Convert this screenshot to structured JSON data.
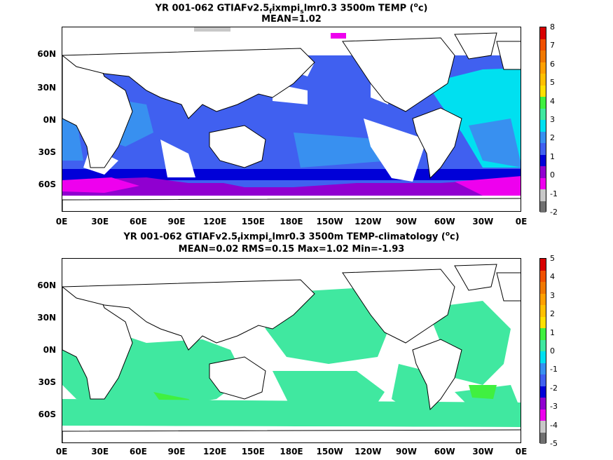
{
  "panel1": {
    "title_pre": "YR 001-062 GTIAFv2.5",
    "title_sub1": "f",
    "title_mid": "ixmpi",
    "title_sub2": "s",
    "title_post": "lmr0.3 3500m TEMP (",
    "title_sup": "o",
    "title_end": "c)",
    "stats": "MEAN=1.02",
    "colorbar_labels": [
      "8",
      "7",
      "6",
      "5",
      "4",
      "3",
      "2",
      "1",
      "0",
      "-1",
      "-2"
    ]
  },
  "panel2": {
    "title_pre": "YR 001-062 GTIAFv2.5",
    "title_sub1": "f",
    "title_mid": "ixmpi",
    "title_sub2": "s",
    "title_post": "lmr0.3 3500m TEMP-climatology (",
    "title_sup": "o",
    "title_end": "c)",
    "stats": "MEAN=0.02   RMS=0.15   Max=1.02   Min=-1.93",
    "colorbar_labels": [
      "5",
      "4",
      "3",
      "2",
      "1",
      "0",
      "-1",
      "-2",
      "-3",
      "-4",
      "-5"
    ]
  },
  "lat_labels": [
    "60N",
    "30N",
    "0N",
    "30S",
    "60S"
  ],
  "lon_labels": [
    "0E",
    "30E",
    "60E",
    "90E",
    "120E",
    "150E",
    "180E",
    "150W",
    "120W",
    "90W",
    "60W",
    "30W",
    "0E"
  ],
  "colorbar_colors": [
    "#707070",
    "#c8c8c8",
    "#ee00ee",
    "#9000d0",
    "#0000d8",
    "#4060f0",
    "#3890f0",
    "#00e0f0",
    "#40e8a0",
    "#40f040",
    "#ffe000",
    "#ffc000",
    "#ffa000",
    "#f07800",
    "#f05000",
    "#d80000"
  ]
}
